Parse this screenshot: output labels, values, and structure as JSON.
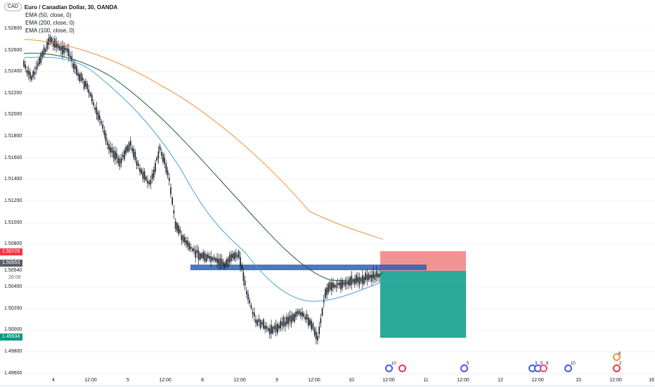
{
  "legend": {
    "currency_chip": "CAD",
    "title": "Euro / Canadian Dollar, 30, OANDA",
    "indicators": [
      "EMA (50, close, 0)",
      "EMA (200, close, 0)",
      "EMA (100, close, 0)"
    ]
  },
  "price_axis": {
    "ticks": [
      "1.52800",
      "1.52600",
      "1.52400",
      "1.52200",
      "1.52000",
      "1.51800",
      "1.51600",
      "1.51400",
      "1.51200",
      "1.51000",
      "1.50800",
      "1.50400",
      "1.50200",
      "1.50000",
      "1.49800",
      "1.49600"
    ],
    "labels": {
      "stop_loss": "1.50725",
      "entry": "1.50553",
      "last_price": "1.50540",
      "countdown": "26:09",
      "take_profit": "1.49934"
    }
  },
  "time_axis": {
    "ticks": [
      "4",
      "12:00",
      "5",
      "12:00",
      "8",
      "12:00",
      "9",
      "12:00",
      "10",
      "12:00",
      "11",
      "12:00",
      "12",
      "12:00",
      "15",
      "12:00",
      "16"
    ]
  },
  "events": {
    "counts": [
      "10",
      "5",
      "3",
      "5",
      "8",
      "10",
      "6",
      "2"
    ]
  },
  "colors": {
    "candle": "#131722",
    "ema50": "#4aa3df",
    "ema100": "#1b5e3b",
    "ema200": "#f5923e",
    "zone": "#2f5eb8",
    "stop": "#f08080",
    "target": "#14a08f",
    "stop_label_bg": "#f23645",
    "take_label_bg": "#089981",
    "entry_label_bg": "#5d606b"
  }
}
